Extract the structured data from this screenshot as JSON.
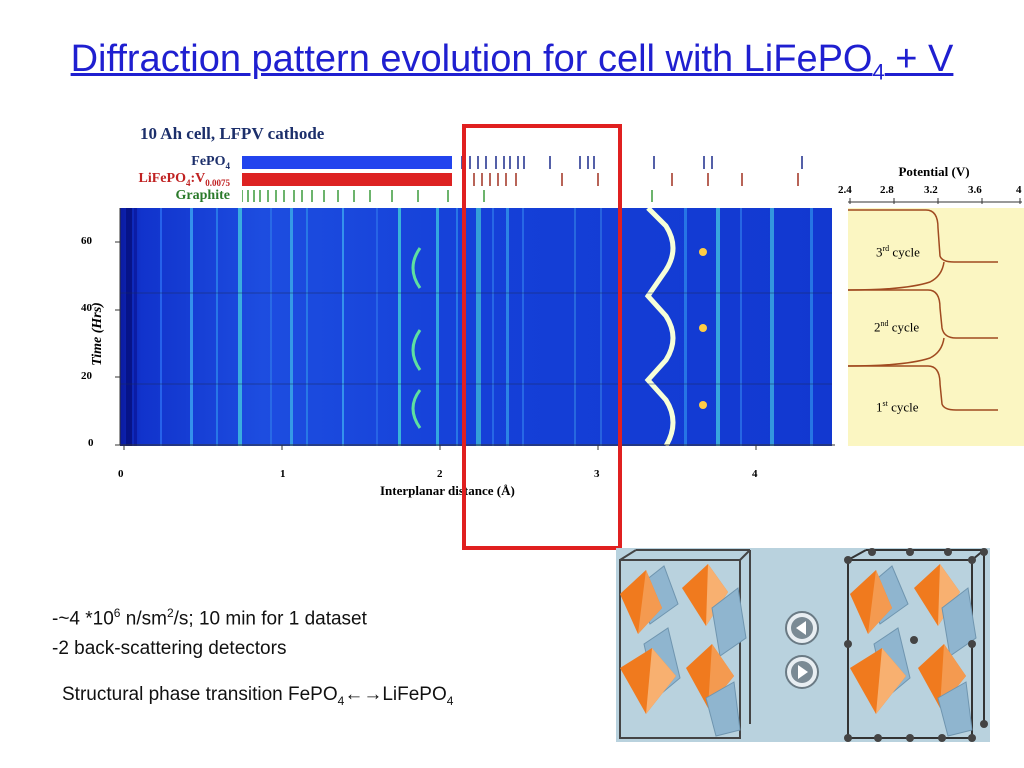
{
  "slide": {
    "title_main": "Diffraction pattern evolution for cell with LiFePO",
    "title_sub": "4",
    "title_tail": " + V"
  },
  "figure": {
    "heading": "10 Ah cell, LFPV cathode",
    "phases": {
      "fepo4_main": "FePO",
      "fepo4_sub": "4",
      "lifepo4_main": "LiFePO",
      "lifepo4_sub": "4",
      "lifepo4_tail": ":V",
      "lifepo4_v_sub": "0.0075",
      "graphite": "Graphite"
    },
    "ylabel": "Time (Hrs)",
    "xlabel": "Interplanar distance (Å)",
    "x_ticks": [
      "0",
      "1",
      "2",
      "3",
      "4"
    ],
    "y_ticks": [
      "0",
      "20",
      "40",
      "60"
    ],
    "potential": {
      "title": "Potential (V)",
      "ticks": [
        "2.4",
        "2.8",
        "3.2",
        "3.6",
        "4"
      ],
      "cycles": [
        {
          "num": "3",
          "sup": "rd",
          "word": " cycle"
        },
        {
          "num": "2",
          "sup": "nd",
          "word": " cycle"
        },
        {
          "num": "1",
          "sup": "st",
          "word": " cycle"
        }
      ]
    },
    "colors": {
      "heatmap_blue": "#1238d8",
      "highlight_box": "#e02020",
      "fepo4_bar": "#2244ee",
      "lifepo4_bar": "#dd2222",
      "graphite_bar": "#3a9a3a",
      "potential_bg": "#fbf6c2",
      "curve": "#a04a20",
      "crystal_orange": "#f07a1e",
      "crystal_blue": "#8fb5cf"
    }
  },
  "notes": {
    "line1_a": "-~4 *10",
    "line1_sup1": "6",
    "line1_b": " n/sm",
    "line1_sup2": "2",
    "line1_c": "/s;  10 min for 1 dataset",
    "line2": "-2 back-scattering detectors",
    "transition_a": "Structural phase transition FePO",
    "transition_sub1": "4",
    "transition_arrow": "←→",
    "transition_b": "LiFePO",
    "transition_sub2": "4"
  },
  "viewer": {
    "prev_icon": "left-arrow-circle-icon",
    "next_icon": "right-arrow-circle-icon"
  }
}
